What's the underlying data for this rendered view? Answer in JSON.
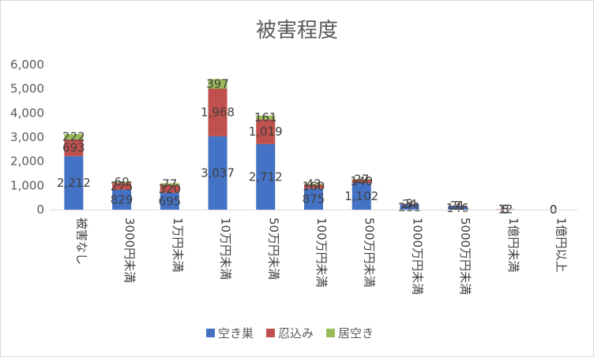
{
  "chart_data": {
    "type": "bar",
    "stacked": true,
    "title": "被害程度",
    "categories": [
      "被害なし",
      "3000円未満",
      "1万円未満",
      "10万円未満",
      "50万円未満",
      "100万円未満",
      "500万円未満",
      "1000万円未満",
      "5000万円未満",
      "1億円未満",
      "1億円以上"
    ],
    "series": [
      {
        "name": "空き巣",
        "color": "#4472c4",
        "values": [
          2212,
          829,
          695,
          3037,
          2712,
          875,
          1102,
          211,
          146,
          5,
          0
        ]
      },
      {
        "name": "忍込み",
        "color": "#c0504d",
        "values": [
          693,
          275,
          320,
          1968,
          1019,
          160,
          140,
          24,
          21,
          12,
          0
        ]
      },
      {
        "name": "居空き",
        "color": "#9bbb59",
        "values": [
          222,
          60,
          77,
          397,
          161,
          43,
          27,
          3,
          2,
          0,
          0
        ]
      }
    ],
    "value_labels": [
      [
        "2,212",
        "829",
        "695",
        "3,037",
        "2,712",
        "875",
        "1,102",
        "211",
        "146",
        "5",
        "0"
      ],
      [
        "693",
        "275",
        "320",
        "1,968",
        "1,019",
        "160",
        "140",
        "24",
        "21",
        "12",
        "0"
      ],
      [
        "222",
        "60",
        "77",
        "397",
        "161",
        "43",
        "27",
        "3",
        "2",
        "0",
        "0"
      ]
    ],
    "ylim": [
      0,
      6000
    ],
    "yticks": [
      0,
      1000,
      2000,
      3000,
      4000,
      5000,
      6000
    ],
    "ytick_labels": [
      "0",
      "1,000",
      "2,000",
      "3,000",
      "4,000",
      "5,000",
      "6,000"
    ],
    "xlabel": "",
    "ylabel": "",
    "grid": false,
    "legend_position": "bottom"
  }
}
